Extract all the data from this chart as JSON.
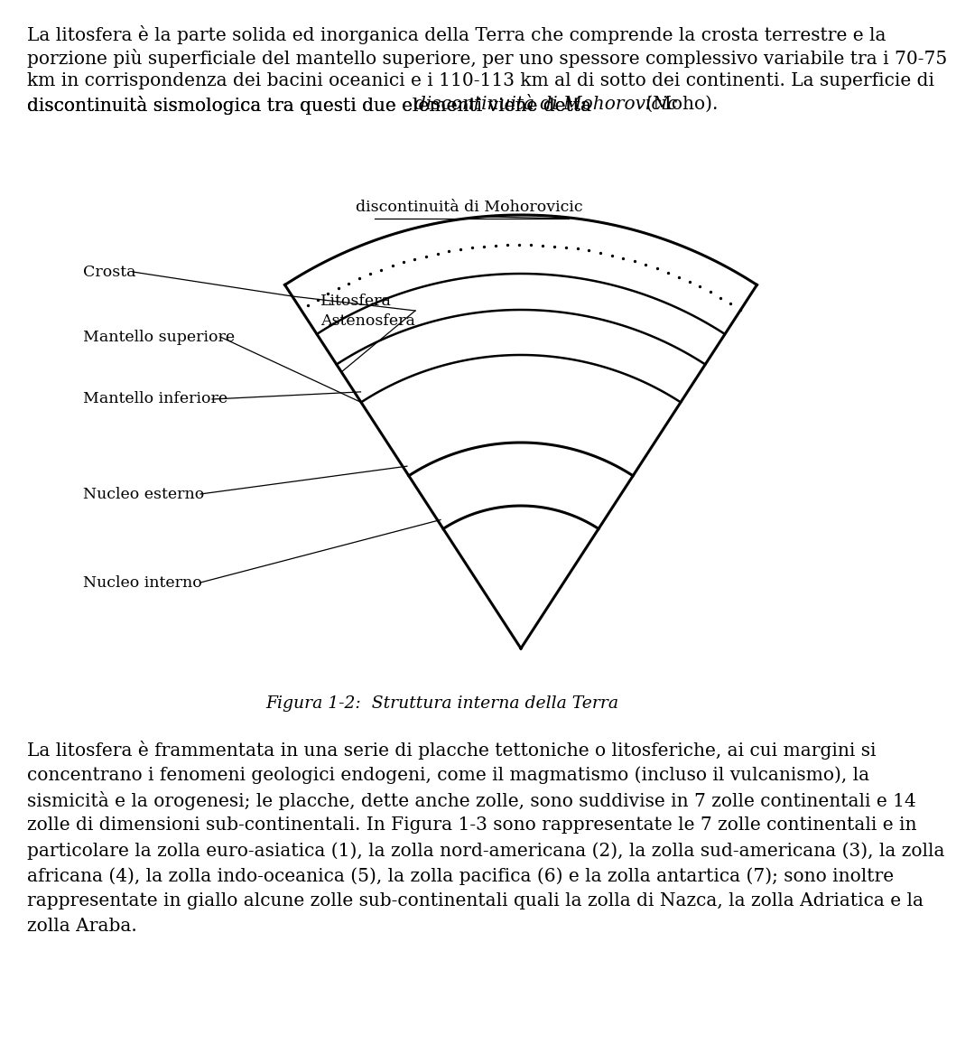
{
  "bg_color": "#ffffff",
  "text_color": "#000000",
  "figure_caption": "Figura 1-2:  Struttura interna della Terra",
  "labels": {
    "discontinuita": "discontinuità di Mohorovicic",
    "crosta": "Crosta",
    "litosfera": "Litosfera",
    "astenosfera": "Astenosfera",
    "mantello_sup": "Mantello superiore",
    "mantello_inf": "Mantello inferiore",
    "nucleo_esterno": "Nucleo esterno",
    "nucleo_interno": "Nucleo interno"
  },
  "font_size_body": 14.5,
  "font_size_label": 12.5,
  "font_size_caption": 13.5,
  "para1_lines": [
    "La litosfera è la parte solida ed inorganica della Terra che comprende la crosta terrestre e la",
    "porzione più superficiale del mantello superiore, per uno spessore complessivo variabile tra i 70-75",
    "km in corrispondenza dei bacini oceanici e i 110-113 km al di sotto dei continenti. La superficie di",
    "discontinuità sismologica tra questi due elementi viene detta "
  ],
  "para1_italic": "discontinuità di Mohorovicic",
  "para1_end": " (Moho).",
  "para2_lines": [
    "La litosfera è frammentata in una serie di placche tettoniche o litosferiche, ai cui margini si",
    "concentrano i fenomeni geologici endogeni, come il magmatismo (incluso il vulcanismo), la",
    "sismicità e la orogenesi; le placche, dette anche zolle, sono suddivise in 7 zolle continentali e 14",
    "zolle di dimensioni sub-continentali. In Figura 1-3 sono rappresentate le 7 zolle continentali e in",
    "particolare la zolla euro-asiatica (1), la zolla nord-americana (2), la zolla sud-americana (3), la zolla",
    "africana (4), la zolla indo-oceanica (5), la zolla pacifica (6) e la zolla antartica (7); sono inoltre",
    "rappresentate in giallo alcune zolle sub-continentali quali la zolla di Nazca, la zolla Adriatica e la",
    "zolla Araba."
  ]
}
